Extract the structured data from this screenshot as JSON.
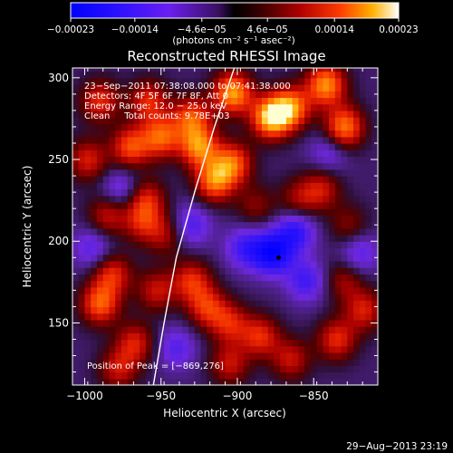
{
  "chart_data": {
    "type": "heatmap",
    "title": "Reconstructed RHESSI Image",
    "xlabel": "Heliocentric X (arcsec)",
    "ylabel": "Heliocentric Y (arcsec)",
    "xlim": [
      -1008,
      -808
    ],
    "ylim": [
      112,
      306
    ],
    "x_ticks": [
      -1000,
      -950,
      -900,
      -850
    ],
    "x_tick_labels": [
      "−1000",
      "−950",
      "−900",
      "−850"
    ],
    "y_ticks": [
      150,
      200,
      250,
      300
    ],
    "y_tick_labels": [
      "150",
      "200",
      "250",
      "300"
    ],
    "colorbar": {
      "range": [
        -0.00023,
        0.00023
      ],
      "ticks": [
        -0.00023,
        -0.00014,
        -4.6e-05,
        4.6e-05,
        0.00014,
        0.00023
      ],
      "tick_labels": [
        "−0.00023",
        "−0.00014",
        "−4.6e−05",
        "4.6e−05",
        "0.00014",
        "0.00023"
      ],
      "unit_label": "(photons cm⁻² s⁻¹ asec⁻²)"
    },
    "annotations": [
      "23−Sep−2011 07:38:08.000 to 07:41:38.000",
      "Detectors: 4F 5F 6F 7F 8F, Att 0",
      "Energy Range: 12.0 − 25.0 keV",
      "Clean     Total counts: 9.78E+03"
    ],
    "peak_label": "Position of Peak = [−869,276]",
    "peak": [
      -869,
      276
    ],
    "marker": [
      -873,
      190
    ],
    "limb_curve": [
      [
        -955,
        112
      ],
      [
        -948,
        150
      ],
      [
        -940,
        190
      ],
      [
        -928,
        230
      ],
      [
        -915,
        270
      ],
      [
        -902,
        306
      ]
    ],
    "blobs": [
      {
        "x": -878,
        "y": 276,
        "v": 1.0
      },
      {
        "x": -865,
        "y": 282,
        "v": 0.8
      },
      {
        "x": -903,
        "y": 291,
        "v": 0.9
      },
      {
        "x": -842,
        "y": 296,
        "v": 0.85
      },
      {
        "x": -830,
        "y": 270,
        "v": 0.8
      },
      {
        "x": -925,
        "y": 258,
        "v": 0.8
      },
      {
        "x": -915,
        "y": 237,
        "v": 0.75
      },
      {
        "x": -903,
        "y": 248,
        "v": 0.7
      },
      {
        "x": -930,
        "y": 276,
        "v": 0.65
      },
      {
        "x": -950,
        "y": 264,
        "v": 0.7
      },
      {
        "x": -970,
        "y": 258,
        "v": 0.65
      },
      {
        "x": -958,
        "y": 286,
        "v": 0.55
      },
      {
        "x": -990,
        "y": 286,
        "v": 0.55
      },
      {
        "x": -998,
        "y": 250,
        "v": 0.5
      },
      {
        "x": -985,
        "y": 216,
        "v": 0.45
      },
      {
        "x": -960,
        "y": 226,
        "v": 0.5
      },
      {
        "x": -962,
        "y": 212,
        "v": 0.45
      },
      {
        "x": -947,
        "y": 204,
        "v": 0.35
      },
      {
        "x": -990,
        "y": 162,
        "v": 0.7
      },
      {
        "x": -982,
        "y": 180,
        "v": 0.55
      },
      {
        "x": -967,
        "y": 138,
        "v": 0.5
      },
      {
        "x": -978,
        "y": 122,
        "v": 0.45
      },
      {
        "x": -953,
        "y": 170,
        "v": 0.45
      },
      {
        "x": -930,
        "y": 176,
        "v": 0.55
      },
      {
        "x": -920,
        "y": 160,
        "v": 0.55
      },
      {
        "x": -905,
        "y": 150,
        "v": 0.5
      },
      {
        "x": -885,
        "y": 142,
        "v": 0.55
      },
      {
        "x": -905,
        "y": 125,
        "v": 0.45
      },
      {
        "x": -865,
        "y": 128,
        "v": 0.45
      },
      {
        "x": -835,
        "y": 140,
        "v": 0.55
      },
      {
        "x": -817,
        "y": 158,
        "v": 0.5
      },
      {
        "x": -830,
        "y": 176,
        "v": 0.35
      },
      {
        "x": -827,
        "y": 210,
        "v": 0.3
      },
      {
        "x": -845,
        "y": 232,
        "v": 0.45
      },
      {
        "x": -860,
        "y": 226,
        "v": 0.35
      },
      {
        "x": -888,
        "y": 222,
        "v": 0.3
      },
      {
        "x": -895,
        "y": 196,
        "v": -0.45
      },
      {
        "x": -877,
        "y": 193,
        "v": -0.8
      },
      {
        "x": -862,
        "y": 206,
        "v": -0.55
      },
      {
        "x": -855,
        "y": 176,
        "v": -0.45
      },
      {
        "x": -930,
        "y": 210,
        "v": -0.4
      },
      {
        "x": -976,
        "y": 232,
        "v": -0.35
      },
      {
        "x": -995,
        "y": 196,
        "v": -0.35
      },
      {
        "x": -940,
        "y": 135,
        "v": -0.35
      },
      {
        "x": -840,
        "y": 255,
        "v": -0.3
      },
      {
        "x": -820,
        "y": 193,
        "v": -0.35
      }
    ]
  },
  "footer": {
    "date": "29−Aug−2013 23:19"
  }
}
